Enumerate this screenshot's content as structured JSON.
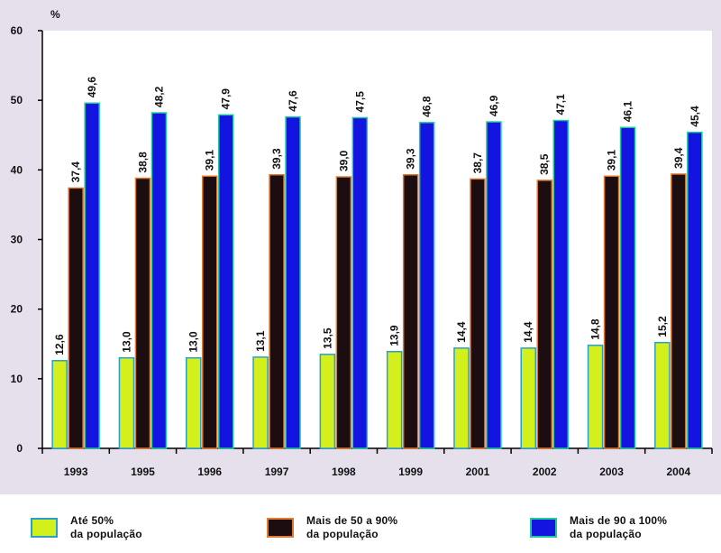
{
  "chart_data": {
    "type": "bar",
    "title": "",
    "xlabel": "",
    "ylabel": "%",
    "ylim": [
      0,
      60
    ],
    "yticks": [
      0,
      10,
      20,
      30,
      40,
      50,
      60
    ],
    "grid": false,
    "legend_position": "bottom",
    "categories": [
      "1993",
      "1995",
      "1996",
      "1997",
      "1998",
      "1999",
      "2001",
      "2002",
      "2003",
      "2004"
    ],
    "series": [
      {
        "name": "Até 50%\nda população",
        "color": "#d4f01c",
        "values": [
          12.6,
          13.0,
          13.0,
          13.1,
          13.5,
          13.9,
          14.4,
          14.4,
          14.8,
          15.2
        ],
        "labels": [
          "12,6",
          "13,0",
          "13,0",
          "13,1",
          "13,5",
          "13,9",
          "14,4",
          "14,4",
          "14,8",
          "15,2"
        ]
      },
      {
        "name": "Mais de 50 a 90%\nda população",
        "color": "#1c0d10",
        "values": [
          37.4,
          38.8,
          39.1,
          39.3,
          39.0,
          39.3,
          38.7,
          38.5,
          39.1,
          39.4
        ],
        "labels": [
          "37,4",
          "38,8",
          "39,1",
          "39,3",
          "39,0",
          "39,3",
          "38,7",
          "38,5",
          "39,1",
          "39,4"
        ]
      },
      {
        "name": "Mais de 90 a 100%\nda população",
        "color": "#1414e0",
        "values": [
          49.6,
          48.2,
          47.9,
          47.6,
          47.5,
          46.8,
          46.9,
          47.1,
          46.1,
          45.4
        ],
        "labels": [
          "49,6",
          "48,2",
          "47,9",
          "47,6",
          "47,5",
          "46,8",
          "46,9",
          "47,1",
          "46,1",
          "45,4"
        ]
      }
    ]
  },
  "colors": {
    "plot_bg": "#ffffff",
    "outer_bg": "#e6e0ec",
    "bar_border_1": "#2aa0c8",
    "bar_border_2": "#e07a30",
    "bar_border_3": "#20c8a0"
  }
}
